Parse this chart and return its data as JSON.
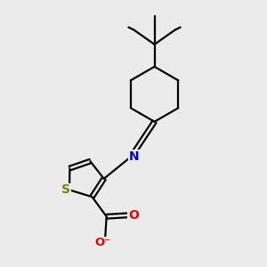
{
  "background_color": "#ebebeb",
  "bond_color": "#000000",
  "sulfur_color": "#808000",
  "nitrogen_color": "#0000cc",
  "oxygen_color": "#ee0000",
  "line_width": 1.6,
  "fig_size": [
    3.0,
    3.0
  ],
  "dpi": 100,
  "xlim": [
    0,
    10
  ],
  "ylim": [
    0,
    10
  ]
}
